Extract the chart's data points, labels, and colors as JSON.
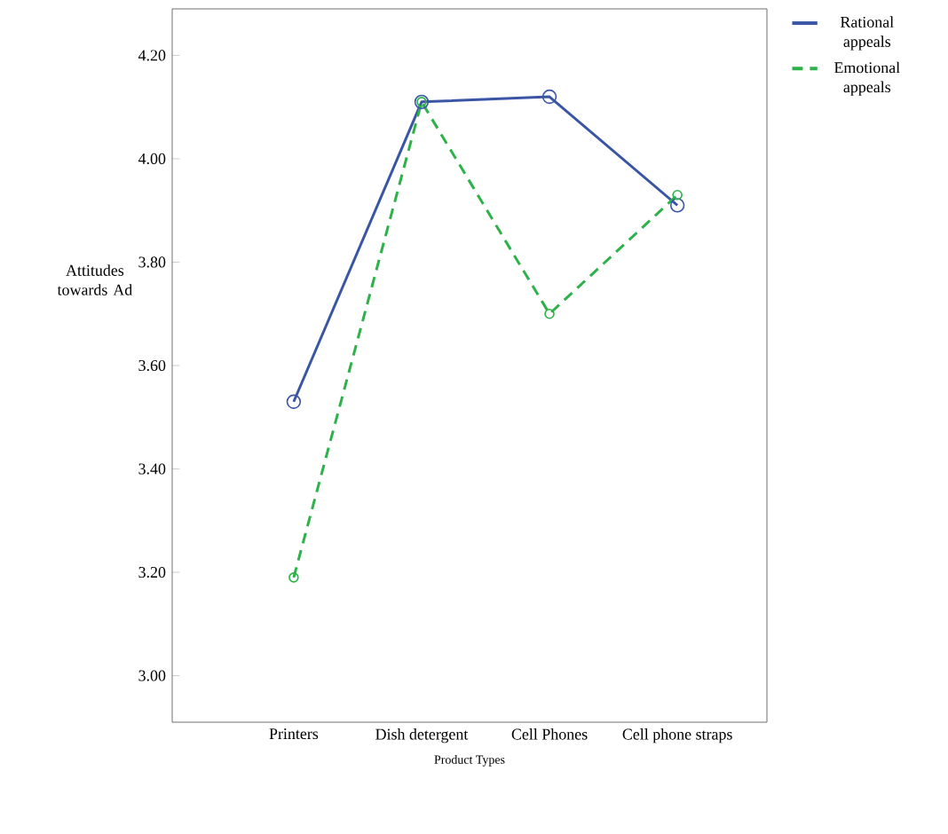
{
  "chart_data": {
    "type": "line",
    "xlabel": "Product Types",
    "ylabel": "Attitudes towards Ad",
    "categories": [
      "Printers",
      "Dish detergent",
      "Cell Phones",
      "Cell phone straps"
    ],
    "series": [
      {
        "name": "Rational appeals",
        "color": "#3a55a4",
        "line_style": "solid",
        "values": [
          3.53,
          4.11,
          4.12,
          3.91
        ]
      },
      {
        "name": "Emotional appeals",
        "color": "#2db24a",
        "line_style": "dashed",
        "values": [
          3.19,
          4.11,
          3.7,
          3.93
        ]
      }
    ],
    "ylim": [
      2.91,
      4.29
    ],
    "yticks": [
      {
        "value": 3.0,
        "label": "3.00"
      },
      {
        "value": 3.2,
        "label": "3.20"
      },
      {
        "value": 3.4,
        "label": "3.40"
      },
      {
        "value": 3.6,
        "label": "3.60"
      },
      {
        "value": 3.8,
        "label": "3.80"
      },
      {
        "value": 4.0,
        "label": "4.00"
      },
      {
        "value": 4.2,
        "label": "4.20"
      }
    ],
    "marker": "circle",
    "grid": false,
    "legend": "top right"
  }
}
